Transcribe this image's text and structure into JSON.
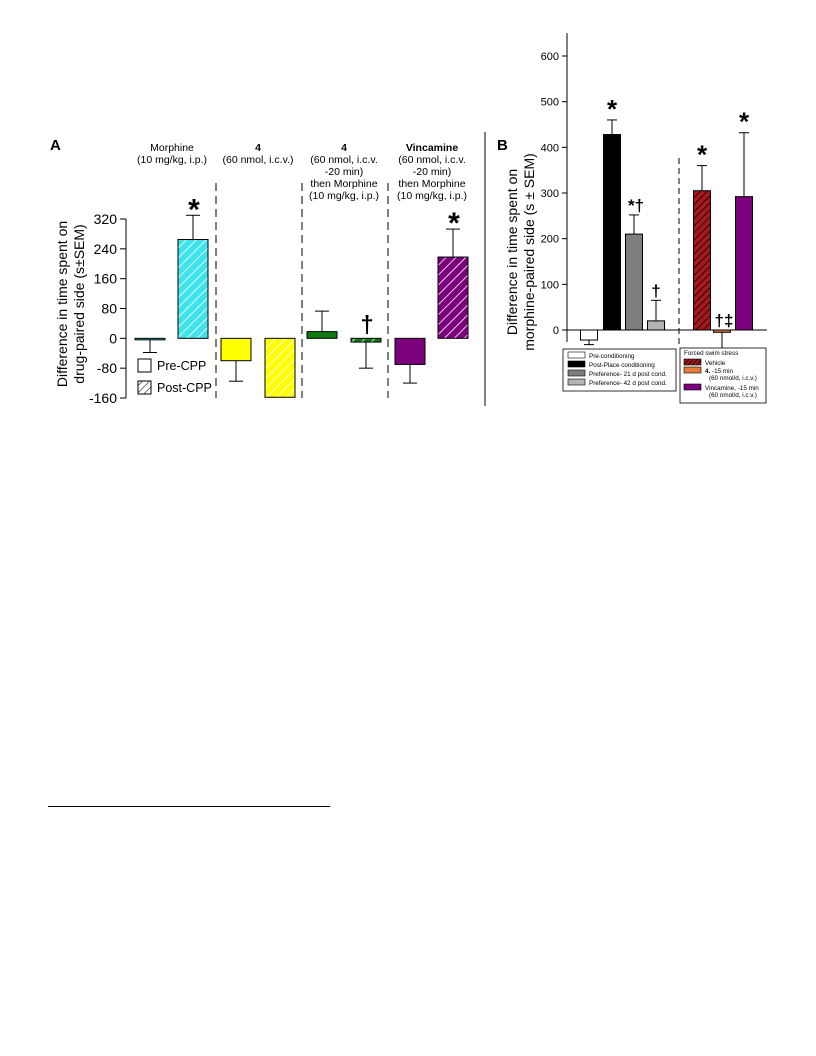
{
  "figure": {
    "panel_a_label": "A",
    "panel_b_label": "B"
  },
  "chart_data": [
    {
      "type": "bar",
      "panel": "A",
      "ylabel_line1": "Difference in time spent on",
      "ylabel_line2": "drug-paired side (s±SEM)",
      "ylim": [
        -160,
        320
      ],
      "yticks": [
        "320",
        "240",
        "160",
        "80",
        "0",
        "-80",
        "-160"
      ],
      "ytick_values": [
        320,
        240,
        160,
        80,
        0,
        -80,
        -160
      ],
      "grid": false,
      "legend_position": "bottom-left",
      "legend": [
        {
          "label": "Pre-CPP",
          "pattern": "open"
        },
        {
          "label": "Post-CPP",
          "pattern": "hatched"
        }
      ],
      "groups": [
        {
          "title_bold": "",
          "title_lines": [
            "Morphine",
            "(10 mg/kg, i.p.)"
          ],
          "color": "#3fe3ec",
          "pre": {
            "value": -4,
            "error": 34,
            "mark": ""
          },
          "post": {
            "value": 265,
            "error": 65,
            "mark": "*"
          }
        },
        {
          "title_bold": "4",
          "title_lines": [
            "(60 nmol, i.c.v.)"
          ],
          "color": "#ffff00",
          "pre": {
            "value": -60,
            "error": 55,
            "mark": ""
          },
          "post": {
            "value": -158,
            "error": 0,
            "mark": ""
          }
        },
        {
          "title_bold": "4",
          "title_lines": [
            "(60 nmol, i.c.v.",
            "-20 min)",
            "then Morphine",
            "(10 mg/kg, i.p.)"
          ],
          "color": "#0f7a12",
          "pre": {
            "value": 18,
            "error": 55,
            "mark": ""
          },
          "post": {
            "value": -10,
            "error": 70,
            "mark": "†"
          }
        },
        {
          "title_bold": "Vincamine",
          "title_lines": [
            "(60 nmol, i.c.v.",
            "-20 min)",
            "then Morphine",
            "(10 mg/kg, i.p.)"
          ],
          "color": "#7b007b",
          "pre": {
            "value": -70,
            "error": 50,
            "mark": ""
          },
          "post": {
            "value": 218,
            "error": 75,
            "mark": "*"
          }
        }
      ]
    },
    {
      "type": "bar",
      "panel": "B",
      "ylabel_line1": "Difference in time spent on",
      "ylabel_line2": "morphine-paired side (s ± SEM)",
      "ylim": [
        -20,
        650
      ],
      "yticks": [
        "600",
        "500",
        "400",
        "300",
        "200",
        "100",
        "0"
      ],
      "ytick_values": [
        600,
        500,
        400,
        300,
        200,
        100,
        0
      ],
      "grid": false,
      "legend_position": "bottom",
      "bars": [
        {
          "label": "Pre-conditioning",
          "value": -22,
          "error": 10,
          "color": "#ffffff",
          "pattern": "solid",
          "mark": "",
          "block": "left"
        },
        {
          "label": "Post-Place conditioning",
          "value": 428,
          "error": 32,
          "color": "#000000",
          "pattern": "solid",
          "mark": "*",
          "block": "left"
        },
        {
          "label": "Preference- 21 d post cond.",
          "value": 210,
          "error": 42,
          "color": "#7e7e7e",
          "pattern": "solid",
          "mark": "*†",
          "block": "left"
        },
        {
          "label": "Preference- 42 d post cond.",
          "value": 20,
          "error": 45,
          "color": "#b4b4b4",
          "pattern": "solid",
          "mark": "†",
          "block": "left"
        },
        {
          "label": "Vehicle",
          "value": 305,
          "error": 55,
          "color": "#a8191b",
          "pattern": "hatched",
          "mark": "*",
          "block": "right"
        },
        {
          "label": "4, -15 min (60 nmol/d, i.c.v.)",
          "value": -5,
          "error": 80,
          "color": "#e87a3c",
          "pattern": "solid",
          "mark": "†‡",
          "block": "right"
        },
        {
          "label": "Vincamine, -15 min (60 nmol/d, i.c.v.)",
          "value": 292,
          "error": 140,
          "color": "#7b007b",
          "pattern": "solid",
          "mark": "*",
          "block": "right"
        }
      ],
      "legend_left": [
        {
          "label": "Pre-conditioning",
          "color": "#ffffff"
        },
        {
          "label": "Post-Place conditioning",
          "color": "#000000"
        },
        {
          "label": "Preference- 21 d post cond.",
          "color": "#7e7e7e"
        },
        {
          "label": "Preference- 42 d post cond.",
          "color": "#b4b4b4"
        }
      ],
      "legend_right_title": "Forced swim stress",
      "legend_right": [
        {
          "bold": "",
          "lines": [
            "Vehicle"
          ],
          "color": "#a8191b",
          "pattern": "hatched"
        },
        {
          "bold": "4.",
          "lines": [
            " -15 min",
            "(60 nmol/d, i.c.v.)"
          ],
          "color": "#e87a3c",
          "pattern": "solid"
        },
        {
          "bold": "",
          "lines": [
            "Vincamine, -15 min",
            "(60 nmol/d, i.c.v.)"
          ],
          "color": "#7b007b",
          "pattern": "solid"
        }
      ]
    }
  ]
}
